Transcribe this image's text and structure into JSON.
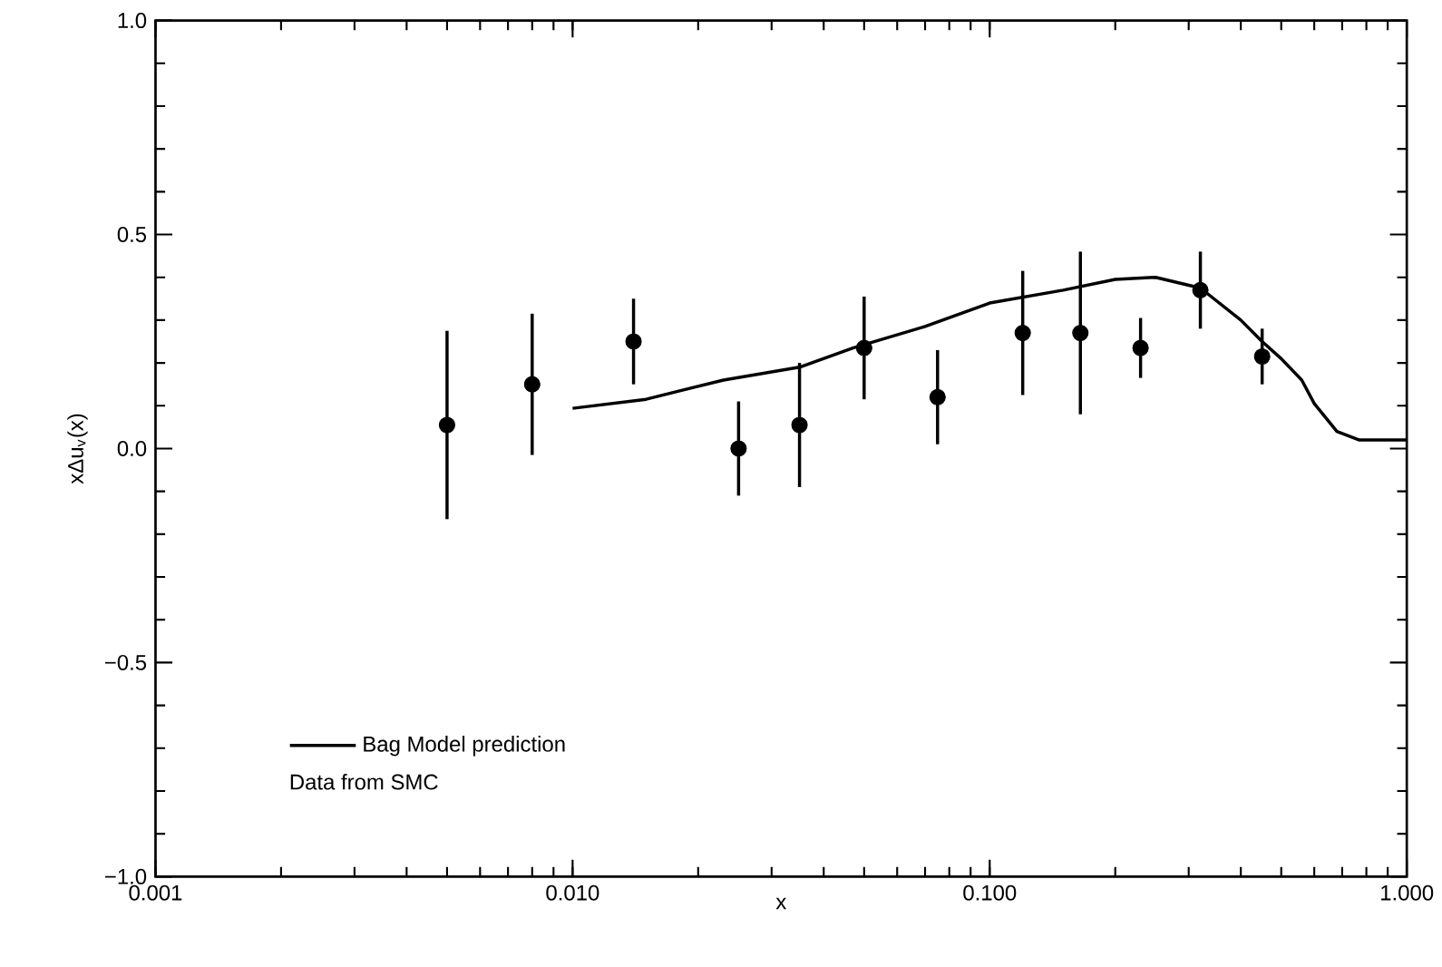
{
  "chart_data": {
    "type": "scatter",
    "xlabel": "x",
    "ylabel": "xΔu$_{v}$(x)",
    "log": "x",
    "xlim": [
      0.001,
      1.0
    ],
    "ylim": [
      -1.0,
      1.0
    ],
    "xticks": [
      {
        "value": 0.001,
        "label": "0.001"
      },
      {
        "value": 0.01,
        "label": "0.010"
      },
      {
        "value": 0.1,
        "label": "0.100"
      },
      {
        "value": 1.0,
        "label": "1.000"
      }
    ],
    "yticks": [
      {
        "value": -1.0,
        "label": "−1.0"
      },
      {
        "value": -0.5,
        "label": "−0.5"
      },
      {
        "value": 0.0,
        "label": "0.0"
      },
      {
        "value": 0.5,
        "label": "0.5"
      },
      {
        "value": 1.0,
        "label": "1.0"
      }
    ],
    "grid": false,
    "legend": "bottom left",
    "annotations": [
      "Data from SMC"
    ],
    "series": [
      {
        "color": "#000000",
        "marker": "circle",
        "x": [
          0.005,
          0.008,
          0.014,
          0.025,
          0.035,
          0.05,
          0.075,
          0.12,
          0.165,
          0.23,
          0.32,
          0.45
        ],
        "values": [
          0.055,
          0.15,
          0.25,
          0.0,
          0.055,
          0.235,
          0.12,
          0.27,
          0.27,
          0.235,
          0.37,
          0.215
        ],
        "errors": [
          0.22,
          0.165,
          0.1,
          0.11,
          0.145,
          0.12,
          0.11,
          0.145,
          0.19,
          0.07,
          0.09,
          0.065
        ]
      },
      {
        "type": "line",
        "name": "Bag Model prediction",
        "color": "#000000",
        "marker": "none",
        "line_style": "solid",
        "x": [
          0.01,
          0.015,
          0.023,
          0.035,
          0.047,
          0.07,
          0.1,
          0.15,
          0.2,
          0.25,
          0.32,
          0.4,
          0.45,
          0.5,
          0.56,
          0.6,
          0.68,
          0.77,
          1.0
        ],
        "values": [
          0.094,
          0.115,
          0.16,
          0.19,
          0.235,
          0.285,
          0.34,
          0.37,
          0.395,
          0.4,
          0.375,
          0.3,
          0.25,
          0.21,
          0.16,
          0.105,
          0.04,
          0.02,
          0.02
        ]
      }
    ]
  }
}
